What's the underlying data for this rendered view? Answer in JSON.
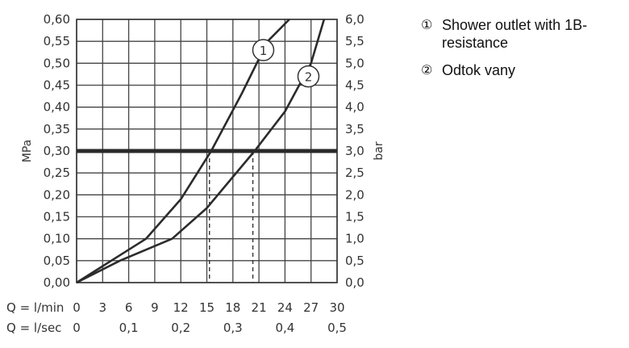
{
  "chart_data": {
    "type": "line",
    "y_left_label": "MPa",
    "y_right_label": "bar",
    "y_left_ticks": [
      "0,00",
      "0,05",
      "0,10",
      "0,15",
      "0,20",
      "0,25",
      "0,30",
      "0,35",
      "0,40",
      "0,45",
      "0,50",
      "0,55",
      "0,60"
    ],
    "y_right_ticks": [
      "0,0",
      "0,5",
      "1,0",
      "1,5",
      "2,0",
      "2,5",
      "3,0",
      "3,5",
      "4,0",
      "4,5",
      "5,0",
      "5,5",
      "6,0"
    ],
    "ylim": [
      0,
      0.6
    ],
    "x_lmin": {
      "label": "Q = l/min",
      "ticks": [
        "0",
        "3",
        "6",
        "9",
        "12",
        "15",
        "18",
        "21",
        "24",
        "27",
        "30"
      ],
      "lim": [
        0,
        30
      ]
    },
    "x_lsec": {
      "label": "Q = l/sec",
      "ticks": [
        "0",
        "0,1",
        "0,2",
        "0,3",
        "0,4",
        "0,5"
      ],
      "positions_lmin": [
        0,
        6,
        12,
        18,
        24,
        30
      ]
    },
    "reference_line": {
      "y": 0.3
    },
    "series": [
      {
        "marker": "1",
        "x": [
          0,
          4,
          8,
          12,
          15.5,
          19,
          22,
          24.5
        ],
        "y": [
          0,
          0.05,
          0.1,
          0.19,
          0.3,
          0.43,
          0.55,
          0.6
        ]
      },
      {
        "marker": "2",
        "x": [
          0,
          5,
          11,
          15,
          20.5,
          24,
          27,
          28.5
        ],
        "y": [
          0,
          0.05,
          0.1,
          0.17,
          0.3,
          0.39,
          0.5,
          0.6
        ]
      }
    ],
    "dashed_drops_x": [
      15.3,
      20.3
    ],
    "legend": [
      {
        "marker": "①",
        "text": "Shower outlet with 1B-resistance"
      },
      {
        "marker": "②",
        "text": "Odtok vany"
      }
    ]
  }
}
